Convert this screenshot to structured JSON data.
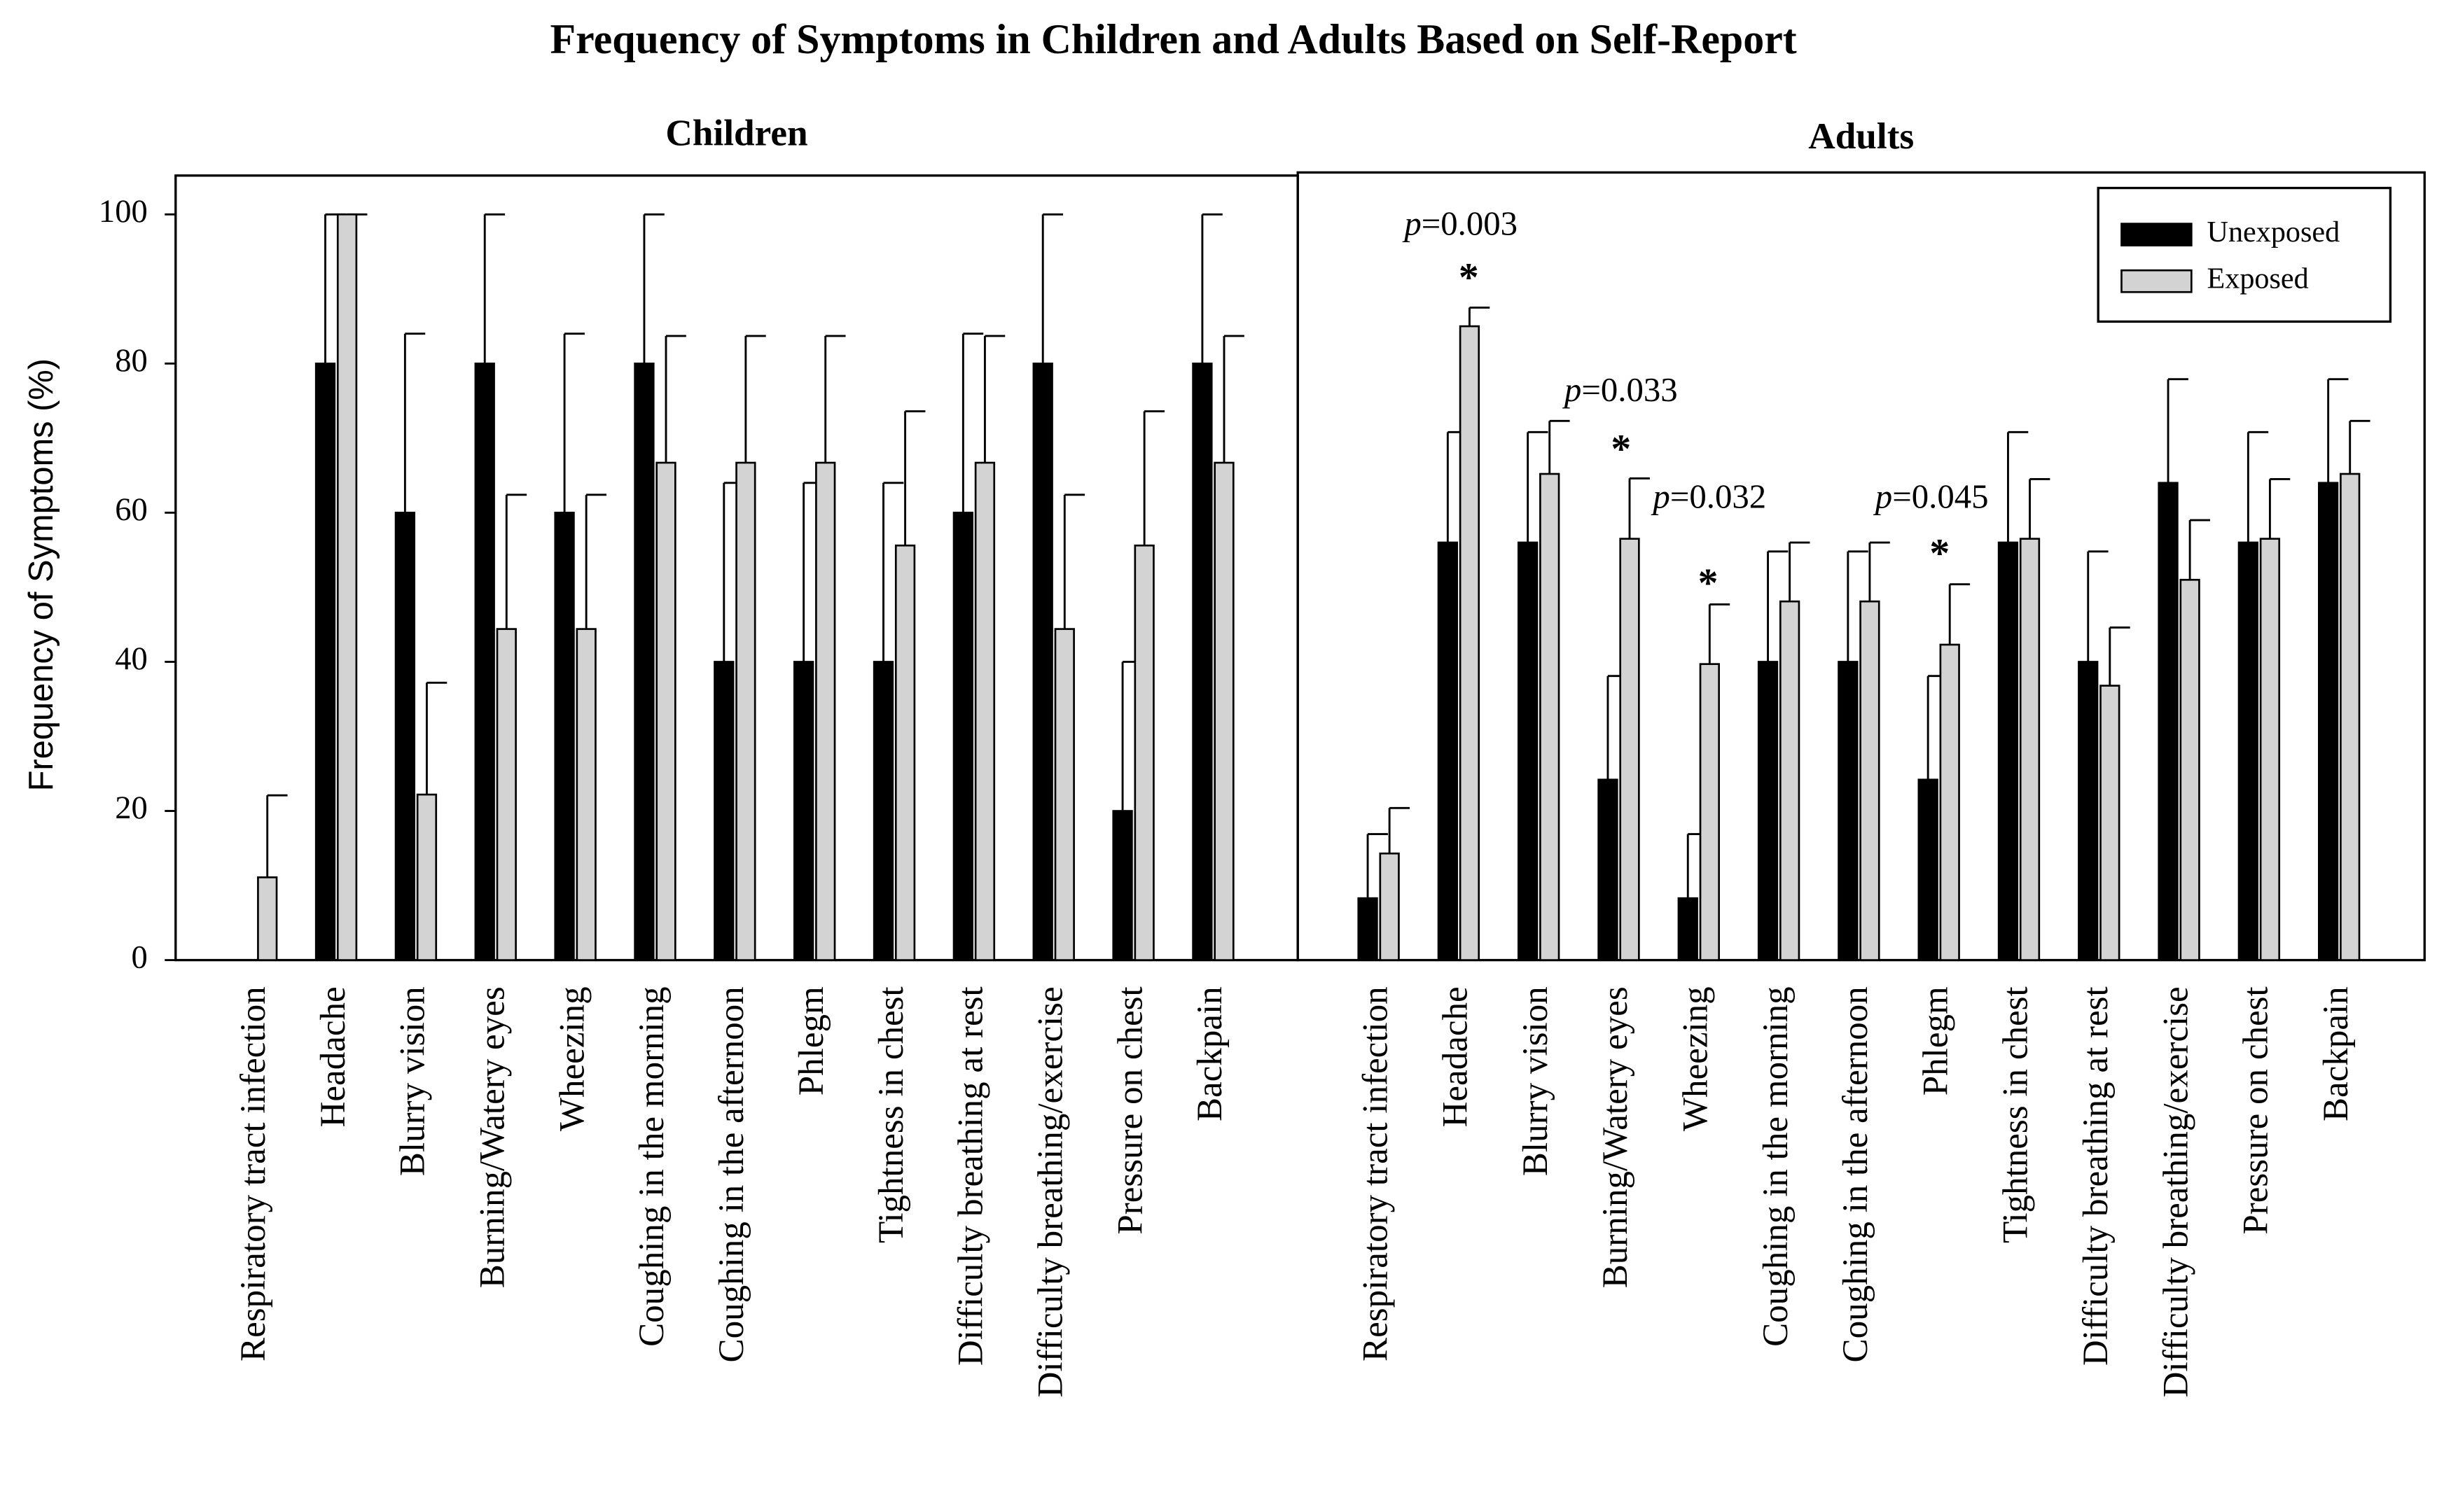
{
  "title": "Frequency of Symptoms in Children and Adults Based on Self-Report",
  "chart_data": [
    {
      "type": "bar",
      "title": "Children",
      "ylabel": "Frequency of Symptoms (%)",
      "categories": [
        "Respiratory tract infection",
        "Headache",
        "Blurry vision",
        "Burning/Watery eyes",
        "Wheezing",
        "Coughing in the morning",
        "Coughing in the afternoon",
        "Phlegm",
        "Tightness in chest",
        "Difficulty breathing at rest",
        "Difficulty breathing/exercise",
        "Pressure on chest",
        "Backpain"
      ],
      "series": [
        {
          "name": "Unexposed",
          "color": "#000000",
          "values": [
            0,
            80,
            60,
            80,
            60,
            80,
            40,
            40,
            40,
            60,
            80,
            20,
            80
          ],
          "errors": [
            0,
            20,
            24,
            20,
            24,
            20,
            24,
            24,
            24,
            24,
            20,
            20,
            20
          ]
        },
        {
          "name": "Exposed",
          "color": "#d3d3d3",
          "values": [
            11.1,
            100,
            22.2,
            44.4,
            44.4,
            66.7,
            66.7,
            66.7,
            55.6,
            66.7,
            44.4,
            55.6,
            66.7
          ],
          "errors": [
            11,
            0,
            15,
            18,
            18,
            17,
            17,
            17,
            18,
            17,
            18,
            18,
            17
          ]
        }
      ],
      "ylim": [
        0,
        100
      ],
      "yticks": [
        0,
        20,
        40,
        60,
        80,
        100
      ]
    },
    {
      "type": "bar",
      "title": "Adults",
      "categories": [
        "Respiratory tract infection",
        "Headache",
        "Blurry vision",
        "Burning/Watery eyes",
        "Wheezing",
        "Coughing in the morning",
        "Coughing in the afternoon",
        "Phlegm",
        "Tightness in chest",
        "Difficulty breathing at rest",
        "Difficulty breathing/exercise",
        "Pressure on chest",
        "Backpain"
      ],
      "series": [
        {
          "name": "Unexposed",
          "color": "#000000",
          "values": [
            8.3,
            56,
            56,
            24.2,
            8.3,
            40,
            40,
            24.2,
            56,
            40,
            64,
            56,
            64
          ],
          "errors": [
            8.6,
            14.8,
            14.8,
            13.9,
            8.6,
            14.8,
            14.8,
            13.9,
            14.8,
            14.8,
            13.9,
            14.8,
            13.9
          ]
        },
        {
          "name": "Exposed",
          "color": "#d3d3d3",
          "values": [
            14.3,
            85,
            65.2,
            56.5,
            39.7,
            48.1,
            48.1,
            42.3,
            56.5,
            36.8,
            51,
            56.5,
            65.2
          ],
          "errors": [
            6.1,
            2.5,
            7.1,
            8.1,
            8,
            7.9,
            7.9,
            8.1,
            8,
            7.8,
            8,
            8,
            7.1
          ]
        }
      ],
      "ylim": [
        0,
        100
      ],
      "legend": "upper right",
      "annotations": [
        "p=0.003",
        "*",
        "p=0.033",
        "*",
        "p=0.032",
        "*",
        "p=0.045",
        "*"
      ]
    }
  ]
}
